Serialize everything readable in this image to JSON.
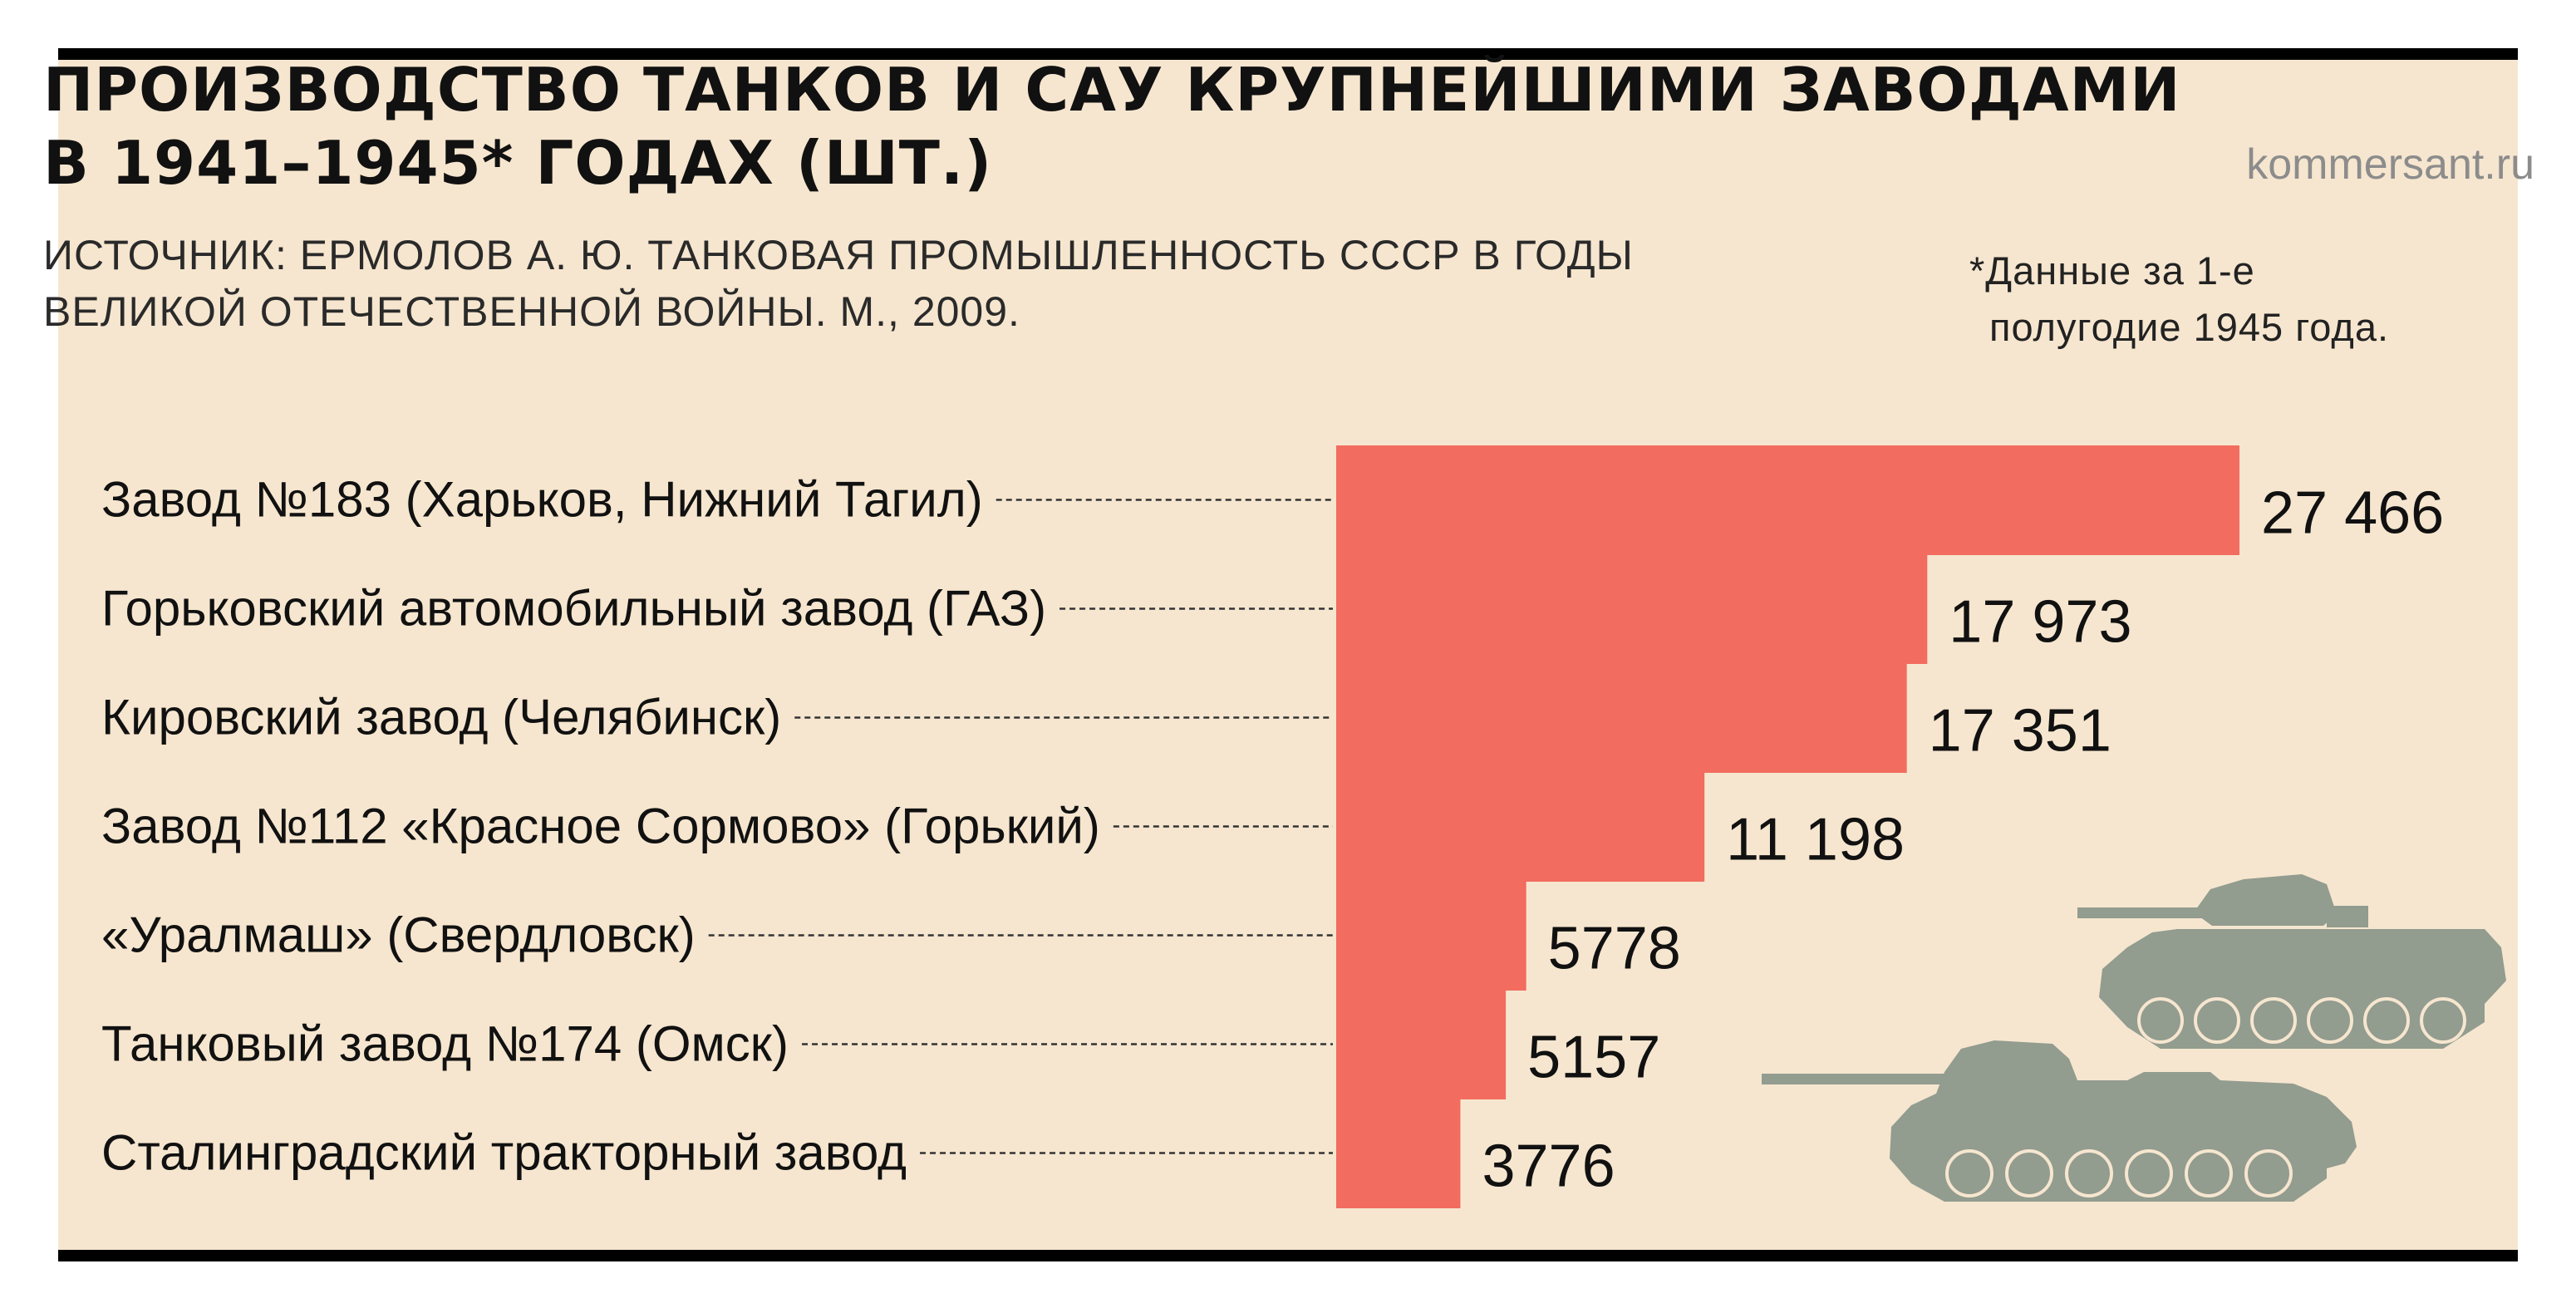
{
  "header": {
    "title_line1": "ПРОИЗВОДСТВО ТАНКОВ И САУ КРУПНЕЙШИМИ ЗАВОДАМИ",
    "title_line2": "В 1941–1945* ГОДАХ (ШТ.)",
    "site": "kommersant.ru",
    "source_line1": "ИСТОЧНИК: ЕРМОЛОВ А. Ю. ТАНКОВАЯ ПРОМЫШЛЕННОСТЬ СССР В ГОДЫ",
    "source_line2": "ВЕЛИКОЙ ОТЕЧЕСТВЕННОЙ ВОЙНЫ. М., 2009.",
    "note_line1": "*Данные за 1-е",
    "note_line2": "полугодие 1945 года."
  },
  "colors": {
    "bar": "#f26c5f",
    "background": "#f6e6cf",
    "tank": "#929c8f",
    "text": "#111111"
  },
  "icons": [
    "tank-icon",
    "self-propelled-gun-icon"
  ],
  "chart_data": {
    "type": "bar",
    "orientation": "horizontal",
    "categories": [
      "Завод №183 (Харьков, Нижний Тагил)",
      "Горьковский автомобильный завод (ГАЗ)",
      "Кировский завод (Челябинск)",
      "Завод №112 «Красное Сормово» (Горький)",
      "«Уралмаш» (Свердловск)",
      "Танковый завод №174  (Омск)",
      "Сталинградский тракторный завод"
    ],
    "values": [
      27466,
      17973,
      17351,
      11198,
      5778,
      5157,
      3776
    ],
    "value_labels": [
      "27 466",
      "17 973",
      "17 351",
      "11 198",
      "5778",
      "5157",
      "3776"
    ],
    "xlim": [
      0,
      27466
    ],
    "grid": false,
    "legend": "none"
  }
}
